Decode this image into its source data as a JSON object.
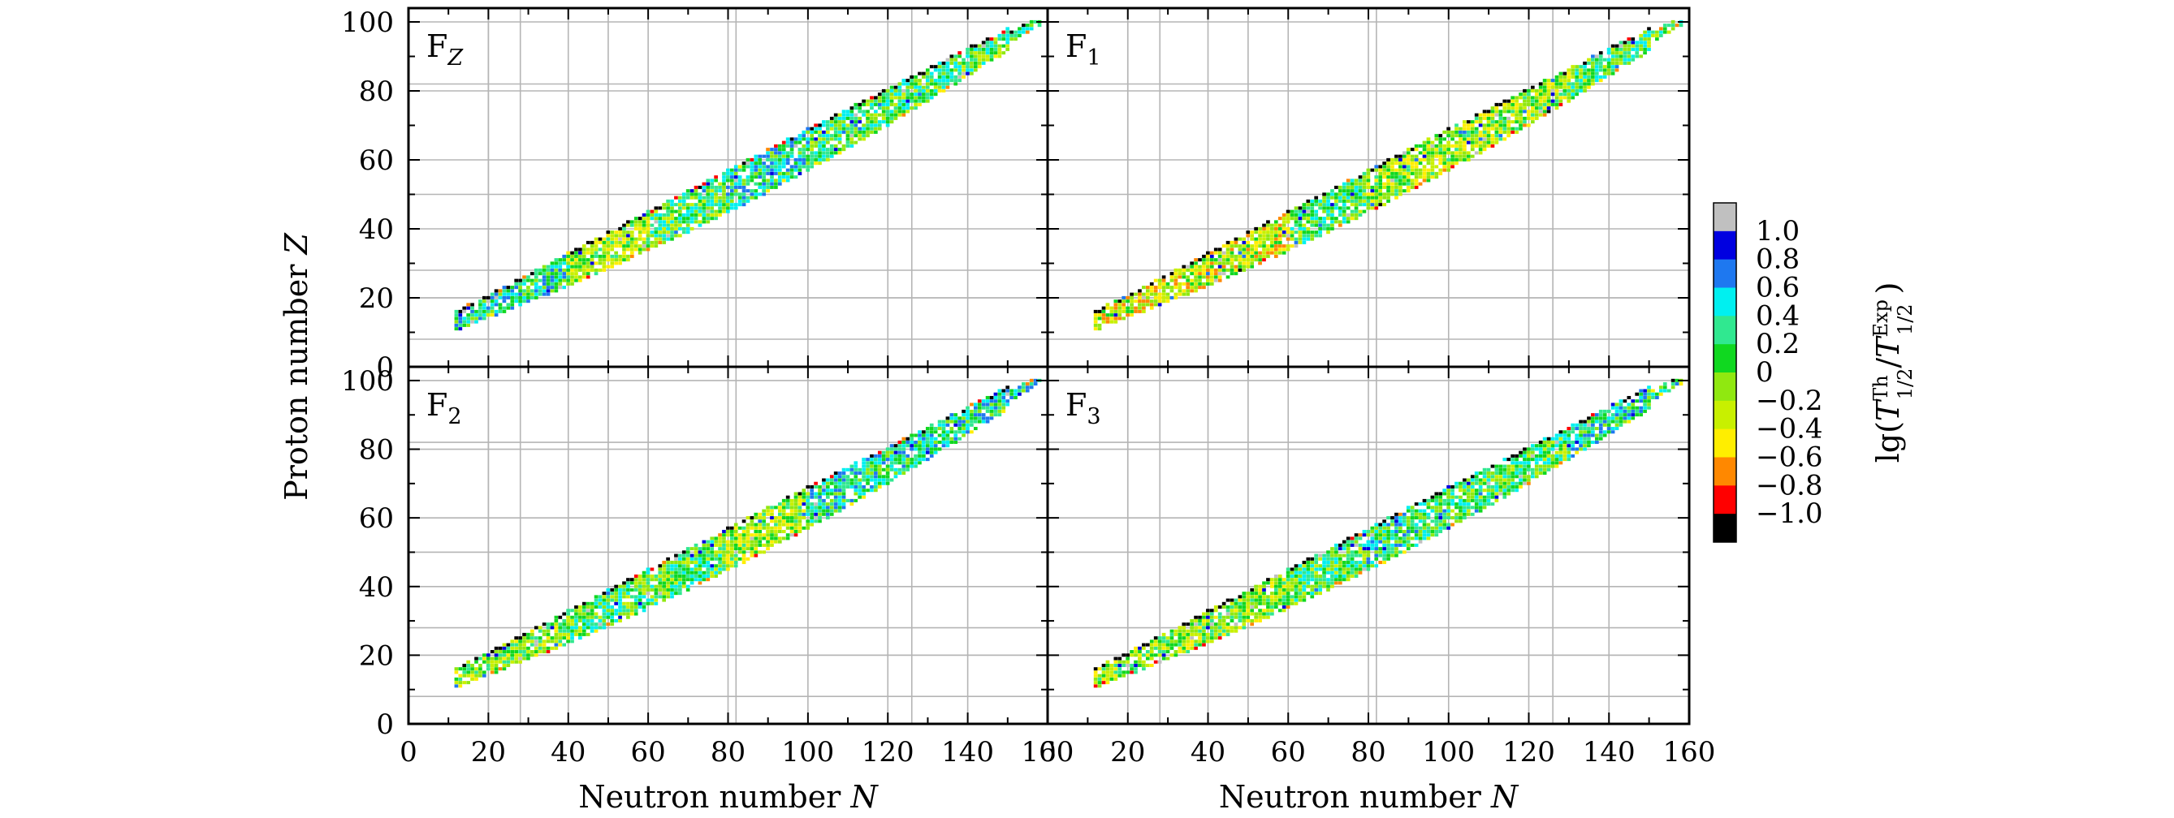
{
  "chart_data": {
    "type": "heatmap",
    "layout": "2x2 panels, shared axes",
    "x_axis": {
      "label_text": "Neutron number ",
      "label_var": "N",
      "range": [
        0,
        160
      ],
      "ticks": [
        "0",
        "20",
        "40",
        "60",
        "80",
        "100",
        "120",
        "140",
        "160"
      ],
      "reference_lines": [
        20,
        28,
        50,
        82,
        126
      ]
    },
    "y_axis": {
      "label_text": "Proton number ",
      "label_var": "Z",
      "range": [
        0,
        104
      ],
      "ticks": [
        "0",
        "20",
        "40",
        "60",
        "80",
        "100"
      ],
      "reference_lines": [
        8,
        20,
        28,
        50,
        82
      ]
    },
    "panels": [
      {
        "label": "F",
        "sub": "Z",
        "sub_italic": true,
        "seed": 11,
        "bias": [
          [
            10,
            40,
            0.15
          ],
          [
            40,
            60,
            -0.3
          ],
          [
            80,
            100,
            0.2
          ]
        ]
      },
      {
        "label": "F",
        "sub": "1",
        "sub_italic": false,
        "seed": 23,
        "bias": [
          [
            8,
            60,
            -0.45
          ],
          [
            80,
            130,
            -0.3
          ]
        ]
      },
      {
        "label": "F",
        "sub": "2",
        "sub_italic": false,
        "seed": 37,
        "bias": [
          [
            10,
            40,
            -0.2
          ],
          [
            80,
            100,
            -0.3
          ],
          [
            100,
            160,
            0.2
          ]
        ]
      },
      {
        "label": "F",
        "sub": "3",
        "sub_italic": false,
        "seed": 53,
        "bias": [
          [
            10,
            60,
            -0.2
          ],
          [
            80,
            100,
            0.1
          ],
          [
            130,
            160,
            0.2
          ]
        ]
      }
    ],
    "colorbar": {
      "title": "lg(T_1/2^Th / T_1/2^Exp)",
      "levels": [
        {
          "label": "1.0",
          "color": "#c0c0c0"
        },
        {
          "label": "0.8",
          "color": "#0000e0"
        },
        {
          "label": "0.6",
          "color": "#1e78f0"
        },
        {
          "label": "0.4",
          "color": "#00f0f0"
        },
        {
          "label": "0.2",
          "color": "#30e890"
        },
        {
          "label": "0",
          "color": "#10d820"
        },
        {
          "label": "−0.2",
          "color": "#90e810"
        },
        {
          "label": "−0.4",
          "color": "#c8f000"
        },
        {
          "label": "−0.6",
          "color": "#ffee00"
        },
        {
          "label": "−0.8",
          "color": "#ff8800"
        },
        {
          "label": "−1.0",
          "color": "#ff0000"
        },
        {
          "label": "",
          "color": "#000000"
        }
      ]
    },
    "data_description": "Ratio of theoretical to experimental half-lives for nuclides along the beta-stability valley, roughly Z 8-98 and N 12-158; values are per-nuclide cells colored by lg ratio."
  }
}
